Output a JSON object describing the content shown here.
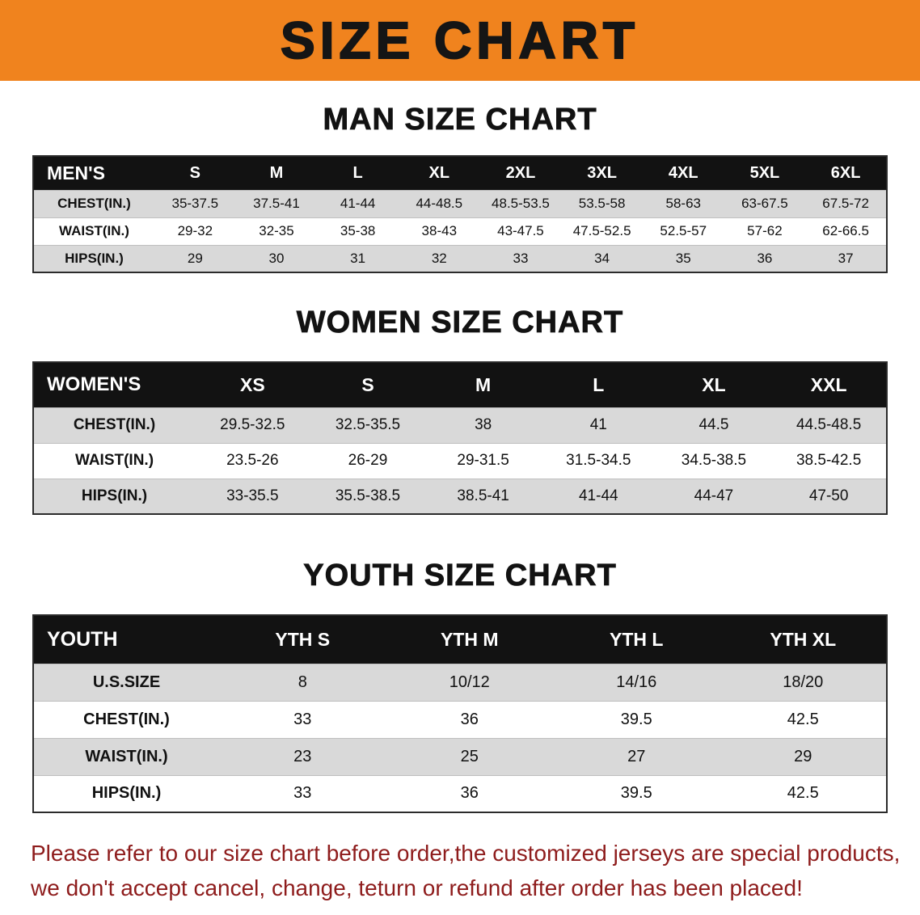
{
  "banner": {
    "title": "SIZE CHART",
    "bg_color": "#F0831E"
  },
  "colors": {
    "banner_orange": "#F0831E",
    "header_black": "#121212",
    "row_shade": "#D9D9D9",
    "notice_red": "#8E1C1C",
    "text_black": "#111111"
  },
  "sections": [
    {
      "heading": "MAN SIZE CHART",
      "table": {
        "header": [
          "MEN'S",
          "S",
          "M",
          "L",
          "XL",
          "2XL",
          "3XL",
          "4XL",
          "5XL",
          "6XL"
        ],
        "rows": [
          {
            "label": "CHEST(IN.)",
            "values": [
              "35-37.5",
              "37.5-41",
              "41-44",
              "44-48.5",
              "48.5-53.5",
              "53.5-58",
              "58-63",
              "63-67.5",
              "67.5-72"
            ]
          },
          {
            "label": "WAIST(IN.)",
            "values": [
              "29-32",
              "32-35",
              "35-38",
              "38-43",
              "43-47.5",
              "47.5-52.5",
              "52.5-57",
              "57-62",
              "62-66.5"
            ]
          },
          {
            "label": "HIPS(IN.)",
            "values": [
              "29",
              "30",
              "31",
              "32",
              "33",
              "34",
              "35",
              "36",
              "37"
            ]
          }
        ]
      }
    },
    {
      "heading": "WOMEN SIZE CHART",
      "table": {
        "header": [
          "WOMEN'S",
          "XS",
          "S",
          "M",
          "L",
          "XL",
          "XXL"
        ],
        "rows": [
          {
            "label": "CHEST(IN.)",
            "values": [
              "29.5-32.5",
              "32.5-35.5",
              "38",
              "41",
              "44.5",
              "44.5-48.5"
            ]
          },
          {
            "label": "WAIST(IN.)",
            "values": [
              "23.5-26",
              "26-29",
              "29-31.5",
              "31.5-34.5",
              "34.5-38.5",
              "38.5-42.5"
            ]
          },
          {
            "label": "HIPS(IN.)",
            "values": [
              "33-35.5",
              "35.5-38.5",
              "38.5-41",
              "41-44",
              "44-47",
              "47-50"
            ]
          }
        ]
      }
    },
    {
      "heading": "YOUTH SIZE CHART",
      "table": {
        "header": [
          "YOUTH",
          "YTH S",
          "YTH M",
          "YTH L",
          "YTH XL"
        ],
        "rows": [
          {
            "label": "U.S.SIZE",
            "values": [
              "8",
              "10/12",
              "14/16",
              "18/20"
            ]
          },
          {
            "label": "CHEST(IN.)",
            "values": [
              "33",
              "36",
              "39.5",
              "42.5"
            ]
          },
          {
            "label": "WAIST(IN.)",
            "values": [
              "23",
              "25",
              "27",
              "29"
            ]
          },
          {
            "label": "HIPS(IN.)",
            "values": [
              "33",
              "36",
              "39.5",
              "42.5"
            ]
          }
        ]
      }
    }
  ],
  "notice": {
    "line1": "Please refer to our size chart before order,the customized jerseys are special products,",
    "line2": "we don't accept cancel, change, teturn or refund after order has been placed!"
  }
}
